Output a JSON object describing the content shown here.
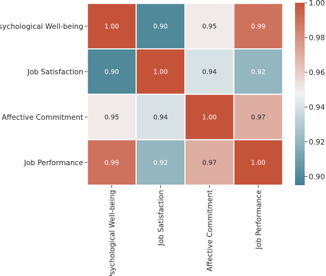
{
  "chart_data": {
    "type": "heatmap",
    "title": "",
    "xlabel": "",
    "ylabel": "",
    "rows": [
      "Psychological Well-being",
      "Job Satisfaction",
      "Affective Commitment",
      "Job Performance"
    ],
    "cols": [
      "Psychological Well-being",
      "Job Satisfaction",
      "Affective Commitment",
      "Job Performance"
    ],
    "values": [
      [
        1.0,
        0.9,
        0.95,
        0.99
      ],
      [
        0.9,
        1.0,
        0.94,
        0.92
      ],
      [
        0.95,
        0.94,
        1.0,
        0.97
      ],
      [
        0.99,
        0.92,
        0.97,
        1.0
      ]
    ],
    "value_format": "2 decimals",
    "colorbar": {
      "min": 0.895,
      "max": 1.0,
      "ticks": [
        0.9,
        0.92,
        0.94,
        0.96,
        0.98,
        1.0
      ],
      "tick_labels": [
        "0.90",
        "0.92",
        "0.94",
        "0.96",
        "0.98",
        "1.00"
      ],
      "colors": {
        "low": "#3f7f8f",
        "mid": "#f2f2f2",
        "high": "#c5533a"
      }
    }
  }
}
